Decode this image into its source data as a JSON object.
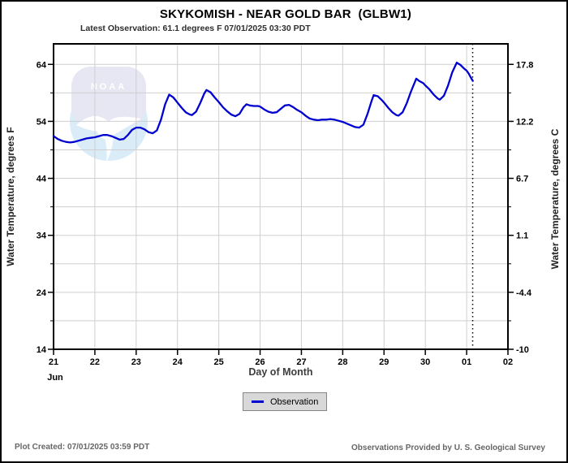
{
  "page": {
    "footer_left": "Plot Created: 07/01/2025 03:59 PDT",
    "footer_right": "Observations Provided by U. S. Geological Survey"
  },
  "chart_data": {
    "type": "line",
    "title": "SKYKOMISH - NEAR GOLD BAR  (GLBW1)",
    "subtitle": "Latest Observation: 61.1 degrees F 07/01/2025 03:30 PDT",
    "xlabel": "Day of Month",
    "month_label": "Jun",
    "ylabel_left": "Water Temperature, degrees F",
    "ylabel_right": "Water Temperature, degrees C",
    "legend_label": "Observation",
    "watermark_text": "NOAA",
    "xlim": [
      0,
      11
    ],
    "ylim": [
      14,
      67.6
    ],
    "grid": true,
    "legend_position": "bottom-center",
    "xticks": [
      {
        "pos": 0,
        "label": "21"
      },
      {
        "pos": 1,
        "label": "22"
      },
      {
        "pos": 2,
        "label": "23"
      },
      {
        "pos": 3,
        "label": "24"
      },
      {
        "pos": 4,
        "label": "25"
      },
      {
        "pos": 5,
        "label": "26"
      },
      {
        "pos": 6,
        "label": "27"
      },
      {
        "pos": 7,
        "label": "28"
      },
      {
        "pos": 8,
        "label": "29"
      },
      {
        "pos": 9,
        "label": "30"
      },
      {
        "pos": 10,
        "label": "01"
      },
      {
        "pos": 11,
        "label": "02"
      }
    ],
    "yticks": [
      {
        "f": 14,
        "label_f": "14",
        "label_c": "-10"
      },
      {
        "f": 24,
        "label_f": "24",
        "label_c": "-4.4"
      },
      {
        "f": 34,
        "label_f": "34",
        "label_c": "1.1"
      },
      {
        "f": 44,
        "label_f": "44",
        "label_c": "6.7"
      },
      {
        "f": 54,
        "label_f": "54",
        "label_c": "12.2"
      },
      {
        "f": 64,
        "label_f": "64",
        "label_c": "17.8"
      }
    ],
    "minor_grid_step_f": 5,
    "current_time_x": 10.146,
    "colors": {
      "line": "#0000d0",
      "grid": "#cfcfcf",
      "axis": "#000000",
      "watermark_top": "#e7e7f3",
      "watermark_bottom": "#d9ecf8"
    },
    "series": [
      {
        "name": "Observation",
        "points": [
          [
            0.0,
            51.4
          ],
          [
            0.1,
            50.9
          ],
          [
            0.2,
            50.6
          ],
          [
            0.3,
            50.4
          ],
          [
            0.4,
            50.3
          ],
          [
            0.5,
            50.4
          ],
          [
            0.6,
            50.6
          ],
          [
            0.7,
            50.8
          ],
          [
            0.8,
            51.0
          ],
          [
            0.9,
            51.1
          ],
          [
            1.0,
            51.2
          ],
          [
            1.1,
            51.4
          ],
          [
            1.2,
            51.6
          ],
          [
            1.3,
            51.6
          ],
          [
            1.4,
            51.4
          ],
          [
            1.5,
            51.1
          ],
          [
            1.6,
            50.8
          ],
          [
            1.7,
            50.9
          ],
          [
            1.8,
            51.6
          ],
          [
            1.9,
            52.5
          ],
          [
            2.0,
            52.9
          ],
          [
            2.1,
            52.9
          ],
          [
            2.2,
            52.6
          ],
          [
            2.3,
            52.1
          ],
          [
            2.4,
            51.9
          ],
          [
            2.5,
            52.4
          ],
          [
            2.6,
            54.3
          ],
          [
            2.7,
            57.0
          ],
          [
            2.8,
            58.7
          ],
          [
            2.9,
            58.2
          ],
          [
            3.0,
            57.3
          ],
          [
            3.1,
            56.4
          ],
          [
            3.2,
            55.6
          ],
          [
            3.3,
            55.2
          ],
          [
            3.35,
            55.1
          ],
          [
            3.45,
            55.7
          ],
          [
            3.55,
            57.2
          ],
          [
            3.65,
            58.9
          ],
          [
            3.7,
            59.5
          ],
          [
            3.8,
            59.1
          ],
          [
            3.9,
            58.2
          ],
          [
            4.0,
            57.4
          ],
          [
            4.1,
            56.5
          ],
          [
            4.2,
            55.8
          ],
          [
            4.3,
            55.2
          ],
          [
            4.4,
            54.9
          ],
          [
            4.5,
            55.3
          ],
          [
            4.6,
            56.5
          ],
          [
            4.67,
            57.0
          ],
          [
            4.75,
            56.8
          ],
          [
            4.85,
            56.7
          ],
          [
            4.95,
            56.7
          ],
          [
            5.0,
            56.6
          ],
          [
            5.1,
            56.1
          ],
          [
            5.2,
            55.7
          ],
          [
            5.3,
            55.5
          ],
          [
            5.4,
            55.6
          ],
          [
            5.5,
            56.2
          ],
          [
            5.6,
            56.8
          ],
          [
            5.7,
            56.9
          ],
          [
            5.8,
            56.5
          ],
          [
            5.9,
            56.0
          ],
          [
            6.0,
            55.6
          ],
          [
            6.1,
            55.0
          ],
          [
            6.2,
            54.5
          ],
          [
            6.3,
            54.3
          ],
          [
            6.4,
            54.2
          ],
          [
            6.5,
            54.3
          ],
          [
            6.6,
            54.3
          ],
          [
            6.7,
            54.4
          ],
          [
            6.8,
            54.3
          ],
          [
            6.9,
            54.1
          ],
          [
            7.0,
            53.9
          ],
          [
            7.1,
            53.6
          ],
          [
            7.2,
            53.3
          ],
          [
            7.3,
            53.0
          ],
          [
            7.4,
            52.9
          ],
          [
            7.5,
            53.4
          ],
          [
            7.6,
            55.3
          ],
          [
            7.7,
            57.6
          ],
          [
            7.75,
            58.6
          ],
          [
            7.85,
            58.4
          ],
          [
            7.95,
            57.7
          ],
          [
            8.0,
            57.3
          ],
          [
            8.1,
            56.4
          ],
          [
            8.2,
            55.6
          ],
          [
            8.3,
            55.1
          ],
          [
            8.35,
            55.0
          ],
          [
            8.45,
            55.6
          ],
          [
            8.55,
            57.2
          ],
          [
            8.65,
            59.2
          ],
          [
            8.78,
            61.5
          ],
          [
            8.85,
            61.1
          ],
          [
            8.95,
            60.7
          ],
          [
            9.0,
            60.3
          ],
          [
            9.1,
            59.6
          ],
          [
            9.2,
            58.7
          ],
          [
            9.3,
            58.0
          ],
          [
            9.35,
            57.8
          ],
          [
            9.45,
            58.5
          ],
          [
            9.55,
            60.3
          ],
          [
            9.65,
            62.6
          ],
          [
            9.76,
            64.3
          ],
          [
            9.85,
            63.9
          ],
          [
            9.95,
            63.2
          ],
          [
            10.0,
            62.9
          ],
          [
            10.05,
            62.4
          ],
          [
            10.1,
            61.7
          ],
          [
            10.15,
            61.1
          ]
        ]
      }
    ]
  }
}
